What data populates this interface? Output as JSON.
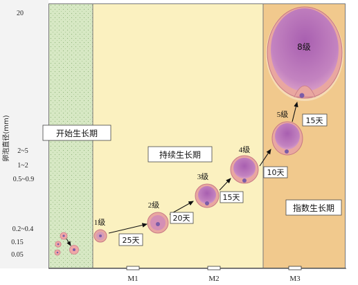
{
  "y_axis": {
    "label": "卵泡直径(mm)",
    "ticks": [
      "20",
      "2~5",
      "1~2",
      "0.5~0.9",
      "0.2~0.4",
      "0.15",
      "0.05"
    ]
  },
  "x_axis": {
    "months": [
      "M1",
      "M2",
      "M3"
    ]
  },
  "phases": [
    {
      "label": "开始生长期",
      "color": "#d7e8c4"
    },
    {
      "label": "持续生长期",
      "color": "#fbf1c0"
    },
    {
      "label": "指数生长期",
      "color": "#f1c98d"
    }
  ],
  "stages": [
    {
      "level": "1级"
    },
    {
      "level": "2级"
    },
    {
      "level": "3级"
    },
    {
      "level": "4级"
    },
    {
      "level": "5级"
    },
    {
      "level": "8级"
    }
  ],
  "durations": [
    "25天",
    "20天",
    "15天",
    "10天",
    "15天"
  ],
  "colors": {
    "follicle_fill": "#c98ab8",
    "follicle_rim": "#e9a7a0",
    "oocyte": "#7a5ca8",
    "arrow": "#111111",
    "axis_panel": "#f3f3f3"
  }
}
